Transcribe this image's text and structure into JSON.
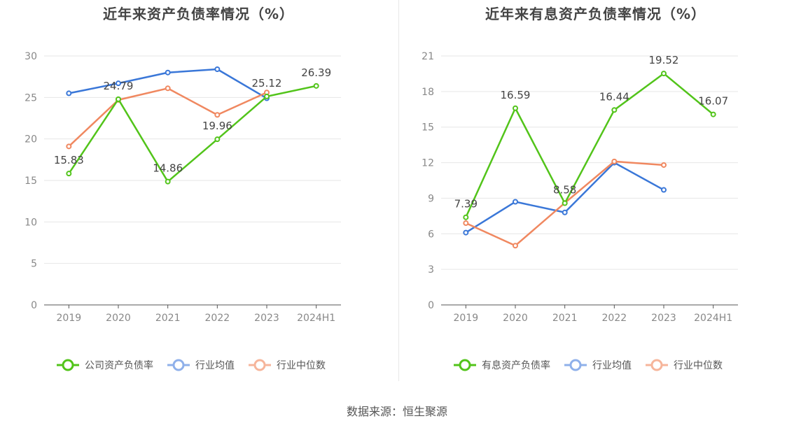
{
  "charts": [
    {
      "title": "近年来资产负债率情况（%）",
      "chart_data": {
        "type": "line",
        "categories": [
          "2019",
          "2020",
          "2021",
          "2022",
          "2023",
          "2024H1"
        ],
        "ylim": [
          0,
          30
        ],
        "yticks": [
          0,
          5,
          10,
          15,
          20,
          25,
          30
        ],
        "grid": true,
        "legend_position": "bottom",
        "series": [
          {
            "name": "公司资产负债率",
            "color": "#52c41a",
            "values": [
              15.83,
              24.79,
              14.86,
              19.96,
              25.12,
              26.39
            ],
            "labels": [
              "15.83",
              "24.79",
              "14.86",
              "19.96",
              "25.12",
              "26.39"
            ]
          },
          {
            "name": "行业均值",
            "color": "#3a77d8",
            "values": [
              25.5,
              26.7,
              28.0,
              28.4,
              24.9,
              null
            ]
          },
          {
            "name": "行业中位数",
            "color": "#f08860",
            "values": [
              19.1,
              24.7,
              26.1,
              22.9,
              25.6,
              null
            ]
          }
        ]
      }
    },
    {
      "title": "近年来有息资产负债率情况（%）",
      "chart_data": {
        "type": "line",
        "categories": [
          "2019",
          "2020",
          "2021",
          "2022",
          "2023",
          "2024H1"
        ],
        "ylim": [
          0,
          21
        ],
        "yticks": [
          0,
          3,
          6,
          9,
          12,
          15,
          18,
          21
        ],
        "grid": true,
        "legend_position": "bottom",
        "series": [
          {
            "name": "有息资产负债率",
            "color": "#52c41a",
            "values": [
              7.39,
              16.59,
              8.58,
              16.44,
              19.52,
              16.07
            ],
            "labels": [
              "7.39",
              "16.59",
              "8.58",
              "16.44",
              "19.52",
              "16.07"
            ]
          },
          {
            "name": "行业均值",
            "color": "#3a77d8",
            "values": [
              6.1,
              8.7,
              7.8,
              12.0,
              9.7,
              null
            ]
          },
          {
            "name": "行业中位数",
            "color": "#f08860",
            "values": [
              6.9,
              5.0,
              8.6,
              12.1,
              11.8,
              null
            ]
          }
        ]
      }
    }
  ],
  "source": "数据来源：恒生聚源"
}
